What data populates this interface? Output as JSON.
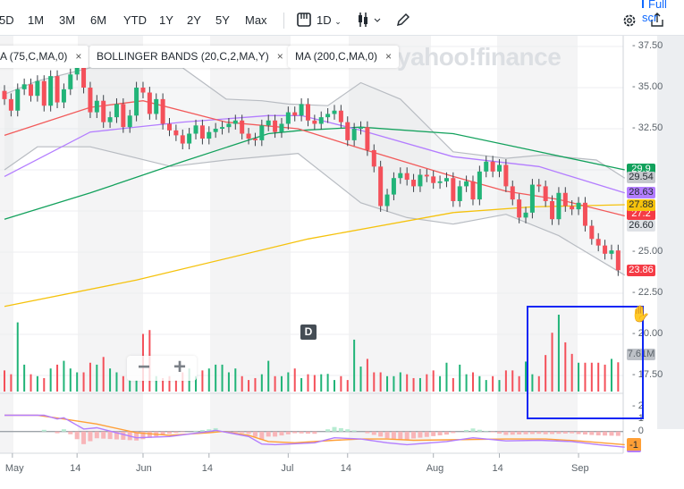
{
  "toolbar": {
    "ranges": [
      "5D",
      "1M",
      "3M",
      "6M",
      "YTD",
      "1Y",
      "2Y",
      "5Y",
      "Max"
    ],
    "interval": "1D",
    "full_screen": "Full scr",
    "icons": [
      "calendar-icon",
      "candlestick-icon",
      "draw-icon",
      "gear-icon",
      "share-icon"
    ]
  },
  "legend": {
    "chips": [
      {
        "label": "A (75,C,MA,0)"
      },
      {
        "label": "BOLLINGER BANDS (20,C,2,MA,Y)"
      },
      {
        "label": "MA (200,C,MA,0)"
      }
    ],
    "close": "×"
  },
  "watermark": "yahoo!finance",
  "d_badge": "D",
  "zoom": {
    "minus": "−",
    "plus": "+"
  },
  "colors": {
    "up": "#21b478",
    "down": "#f4505a",
    "ma200": "#f5c20c",
    "ma50": "#12a15c",
    "ma75": "#b37dff",
    "ma20": "#f25a5a",
    "bb": "#b8bcc2",
    "macd": "#b37dff",
    "signal": "#ff9f36",
    "selection": "#0d26f5"
  },
  "chart_data": {
    "type": "candlestick",
    "y_axis": {
      "ticks": [
        "37.50",
        "35.00",
        "32.50",
        "30.00",
        "27.50",
        "25.00",
        "22.50",
        "20.00",
        "17.50"
      ],
      "visible_labels": [
        "37.50",
        "35.00",
        "32.50",
        "29.54",
        "28.63",
        "27.88",
        "26.60",
        "25.00",
        "23.86",
        "22.50",
        "20.00",
        "7.61M",
        "17.50"
      ],
      "range": [
        17.5,
        37.5
      ]
    },
    "x_axis": {
      "labels": [
        "May",
        "14",
        "Jun",
        "14",
        "Jul",
        "14",
        "Aug",
        "14",
        "Sep"
      ],
      "label_index": [
        1.2,
        11,
        21,
        31,
        43,
        52,
        65,
        75,
        87
      ]
    },
    "first_open": 34.8,
    "close": [
      34.3,
      33.6,
      34.9,
      35.2,
      34.5,
      35.4,
      33.9,
      35.7,
      34.1,
      34.9,
      35.8,
      36.9,
      35.0,
      33.5,
      34.2,
      32.9,
      33.2,
      34.0,
      32.6,
      33.3,
      35.0,
      34.7,
      33.4,
      34.3,
      32.8,
      32.4,
      32.1,
      31.6,
      32.2,
      32.7,
      31.9,
      32.3,
      32.5,
      32.6,
      32.8,
      33.0,
      32.2,
      31.9,
      31.8,
      32.7,
      33.0,
      32.3,
      32.8,
      33.5,
      33.3,
      34.0,
      33.0,
      32.8,
      33.2,
      33.4,
      33.6,
      32.9,
      31.8,
      32.5,
      32.6,
      31.2,
      30.2,
      27.8,
      28.5,
      29.5,
      29.8,
      29.4,
      29.0,
      29.7,
      29.6,
      29.2,
      29.3,
      29.5,
      28.1,
      29.0,
      29.3,
      28.2,
      29.9,
      30.5,
      29.9,
      30.3,
      29.0,
      28.2,
      27.1,
      27.4,
      29.1,
      29.0,
      28.1,
      27.0,
      28.6,
      27.8,
      27.6,
      28.0,
      26.6,
      25.8,
      25.4,
      24.9,
      25.1,
      23.9
    ],
    "volume_millions": [
      5.5,
      4.5,
      18,
      7,
      4.5,
      4,
      3.5,
      6,
      7,
      8,
      6,
      5,
      5,
      7.5,
      7,
      9,
      6,
      5,
      4,
      3,
      3,
      15,
      16,
      4,
      3.5,
      4,
      3,
      5,
      6,
      4,
      5.5,
      6,
      7,
      7,
      5,
      6,
      4,
      3,
      3.5,
      4.5,
      8,
      4,
      4,
      5,
      6,
      3.5,
      4.5,
      4.3,
      4.5,
      4.6,
      3,
      4,
      3,
      13.5,
      6.5,
      8.5,
      5,
      5,
      4,
      4,
      5,
      4.5,
      3.5,
      3.5,
      4.5,
      5.5,
      4,
      7.5,
      3.5,
      7,
      4.5,
      5,
      4,
      3,
      4,
      3,
      5.5,
      5.5,
      4,
      7.8,
      4.5,
      4,
      9.5,
      15.3,
      20,
      12.8,
      9.8,
      7.5,
      7.5,
      7.5,
      7.5,
      7,
      8.5,
      7.61
    ],
    "last_price": "23.86",
    "last_volume": "7.61M",
    "overlays": {
      "ma200": {
        "value": "27.88",
        "points": [
          [
            0,
            21.7
          ],
          [
            20,
            23.3
          ],
          [
            46,
            25.8
          ],
          [
            68,
            27.4
          ],
          [
            80,
            27.75
          ],
          [
            94,
            27.88
          ]
        ]
      },
      "ma50": {
        "value": "29.9",
        "points": [
          [
            0,
            27.0
          ],
          [
            13,
            28.6
          ],
          [
            27,
            30.5
          ],
          [
            40,
            32.2
          ],
          [
            45,
            32.4
          ],
          [
            54,
            32.6
          ],
          [
            68,
            32.2
          ],
          [
            81,
            31.1
          ],
          [
            94,
            30.0
          ]
        ]
      },
      "ma75": {
        "value": "28.63",
        "points": [
          [
            0,
            29.6
          ],
          [
            13,
            32.3
          ],
          [
            27,
            32.9
          ],
          [
            40,
            33.3
          ],
          [
            45,
            33.3
          ],
          [
            54,
            32.4
          ],
          [
            68,
            30.8
          ],
          [
            81,
            30.2
          ],
          [
            94,
            28.6
          ]
        ]
      },
      "ma20": {
        "value": "27.2",
        "points": [
          [
            0,
            32.1
          ],
          [
            13,
            33.8
          ],
          [
            21,
            34.2
          ],
          [
            33.6,
            32.9
          ],
          [
            44.5,
            32.5
          ],
          [
            54,
            31.3
          ],
          [
            68,
            29.6
          ],
          [
            76,
            28.7
          ],
          [
            84,
            28.2
          ],
          [
            94,
            27.2
          ]
        ]
      },
      "bb_upper": {
        "value": "29.54",
        "points": [
          [
            0,
            34.6
          ],
          [
            5,
            35.4
          ],
          [
            13,
            36.2
          ],
          [
            27,
            36.2
          ],
          [
            33.6,
            34.3
          ],
          [
            39,
            34.2
          ],
          [
            43,
            34.0
          ],
          [
            49,
            33.9
          ],
          [
            54,
            35.3
          ],
          [
            60,
            34.3
          ],
          [
            68,
            31.1
          ],
          [
            76,
            30.7
          ],
          [
            81.5,
            30.9
          ],
          [
            89.7,
            30.6
          ],
          [
            94,
            29.5
          ]
        ]
      },
      "bb_lower": {
        "value": "26.60",
        "points": [
          [
            0,
            30.0
          ],
          [
            5,
            31.4
          ],
          [
            13,
            31.4
          ],
          [
            25.3,
            30.2
          ],
          [
            33.6,
            30.6
          ],
          [
            44.5,
            31.0
          ],
          [
            54,
            28.0
          ],
          [
            61,
            27.1
          ],
          [
            68,
            26.7
          ],
          [
            76,
            27.3
          ],
          [
            84,
            26.0
          ],
          [
            94,
            23.6
          ]
        ]
      }
    },
    "macd": {
      "ticks": [
        "2",
        "1",
        "0",
        "-1"
      ],
      "badge": "-1",
      "macd_line": [
        [
          0,
          1.3
        ],
        [
          6,
          1.3
        ],
        [
          8,
          1.0
        ],
        [
          9,
          1.1
        ],
        [
          12,
          0.2
        ],
        [
          14,
          0.3
        ],
        [
          20,
          -0.5
        ],
        [
          25,
          -0.4
        ],
        [
          31,
          0.0
        ],
        [
          32,
          0.1
        ],
        [
          35,
          -0.2
        ],
        [
          37,
          -0.4
        ],
        [
          39,
          -1.0
        ],
        [
          41,
          -1.05
        ],
        [
          47,
          -0.9
        ],
        [
          50,
          -0.5
        ],
        [
          54,
          -0.6
        ],
        [
          58,
          -0.9
        ],
        [
          61,
          -1.05
        ],
        [
          67,
          -0.8
        ],
        [
          71,
          -0.5
        ],
        [
          73,
          -0.6
        ],
        [
          76,
          -0.75
        ],
        [
          81,
          -0.7
        ],
        [
          86,
          -0.8
        ],
        [
          90,
          -1.05
        ],
        [
          94,
          -1.25
        ]
      ],
      "signal_line": [
        [
          0,
          1.3
        ],
        [
          5,
          1.3
        ],
        [
          9,
          1.0
        ],
        [
          14,
          0.6
        ],
        [
          20,
          -0.1
        ],
        [
          25,
          -0.3
        ],
        [
          31,
          -0.1
        ],
        [
          33,
          0.0
        ],
        [
          37,
          -0.3
        ],
        [
          40,
          -0.8
        ],
        [
          44,
          -0.9
        ],
        [
          50,
          -0.7
        ],
        [
          54,
          -0.6
        ],
        [
          58,
          -0.6
        ],
        [
          62,
          -0.7
        ],
        [
          76,
          -0.6
        ],
        [
          82,
          -0.6
        ],
        [
          87,
          -0.75
        ],
        [
          94,
          -1.05
        ]
      ]
    }
  }
}
